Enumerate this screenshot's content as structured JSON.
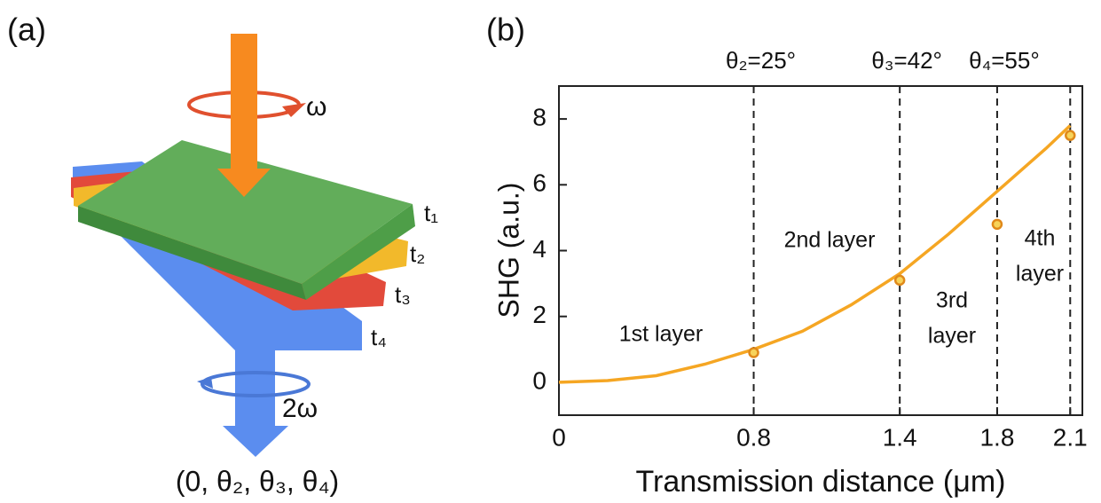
{
  "panel_a": {
    "label": "(a)",
    "omega": "ω",
    "plates": [
      "t₁",
      "t₂",
      "t₃",
      "t₄"
    ],
    "omega2": "2ω",
    "caption": "(0, θ₂, θ₃, θ₄)"
  },
  "chart_data": {
    "type": "line",
    "panel_label": "(b)",
    "xlabel": "Transmission distance (μm)",
    "ylabel": "SHG (a.u.)",
    "xlim": [
      0,
      2.15
    ],
    "ylim": [
      -1,
      9
    ],
    "xticks": [
      0,
      0.8,
      1.4,
      1.8,
      2.1
    ],
    "yticks": [
      0,
      2,
      4,
      6,
      8
    ],
    "series": [
      {
        "color": "#f5a623",
        "x": [
          0,
          0.2,
          0.4,
          0.6,
          0.8,
          1.0,
          1.2,
          1.4,
          1.6,
          1.8,
          2.0,
          2.1
        ],
        "values": [
          0,
          0.05,
          0.2,
          0.55,
          1.0,
          1.55,
          2.35,
          3.3,
          4.5,
          5.8,
          7.1,
          7.8
        ]
      }
    ],
    "points": {
      "color": "#e0891a",
      "fill": "#f7d35a",
      "x": [
        0.8,
        1.4,
        1.8,
        2.1
      ],
      "values": [
        0.9,
        3.1,
        4.8,
        7.5
      ]
    },
    "vlines": [
      0.8,
      1.4,
      1.8,
      2.1
    ],
    "angle_labels": [
      "θ₂=25°",
      "θ₃=42°",
      "θ₄=55°"
    ],
    "region_labels": [
      [
        "1st layer"
      ],
      [
        "2nd layer"
      ],
      [
        "3rd",
        "layer"
      ],
      [
        "4th",
        "layer"
      ]
    ]
  }
}
